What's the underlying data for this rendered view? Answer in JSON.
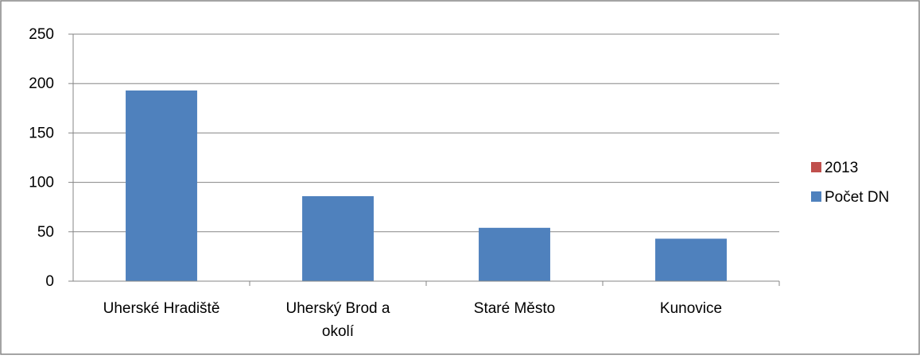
{
  "chart_data": {
    "type": "bar",
    "categories": [
      "Uherské Hradiště",
      "Uherský Brod a okolí",
      "Staré Město",
      "Kunovice"
    ],
    "category_lines": [
      [
        "Uherské Hradiště"
      ],
      [
        "Uherský Brod a",
        "okolí"
      ],
      [
        "Staré Město"
      ],
      [
        "Kunovice"
      ]
    ],
    "series": [
      {
        "name": "2013",
        "values": [
          null,
          null,
          null,
          null
        ],
        "color": "#C0504D"
      },
      {
        "name": "Počet DN",
        "values": [
          193,
          86,
          54,
          43
        ],
        "color": "#4F81BD"
      }
    ],
    "yticks": [
      "0",
      "50",
      "100",
      "150",
      "200",
      "250"
    ],
    "ylim": [
      0,
      250
    ],
    "grid": true,
    "legend_position": "right",
    "colors": {
      "grid": "#868686",
      "axis": "#868686",
      "border": "#868686"
    }
  }
}
